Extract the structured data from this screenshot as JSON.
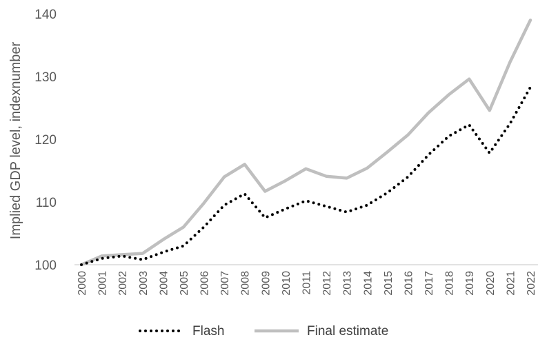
{
  "chart_data": {
    "type": "line",
    "title": "",
    "xlabel": "",
    "ylabel": "Implied GDP level, indexnumber",
    "ylim": [
      100,
      140
    ],
    "yticks": [
      100,
      110,
      120,
      130,
      140
    ],
    "grid": false,
    "legend_position": "bottom",
    "categories": [
      "2000",
      "2001",
      "2002",
      "2003",
      "2004",
      "2005",
      "2006",
      "2007",
      "2008",
      "2009",
      "2010",
      "2011",
      "2012",
      "2013",
      "2014",
      "2015",
      "2016",
      "2017",
      "2018",
      "2019",
      "2020",
      "2021",
      "2022"
    ],
    "series": [
      {
        "name": "Flash",
        "style": "dotted",
        "color": "#000000",
        "values": [
          100.0,
          101.0,
          101.4,
          100.8,
          102.0,
          103.0,
          106.0,
          109.5,
          111.3,
          107.5,
          108.9,
          110.2,
          109.3,
          108.4,
          109.5,
          111.5,
          114.0,
          117.5,
          120.5,
          122.3,
          117.8,
          122.5,
          128.3
        ]
      },
      {
        "name": "Final estimate",
        "style": "solid",
        "color": "#bfbfbf",
        "values": [
          100.0,
          101.4,
          101.6,
          101.8,
          104.0,
          106.0,
          109.8,
          114.0,
          116.0,
          111.7,
          113.4,
          115.3,
          114.1,
          113.8,
          115.4,
          118.0,
          120.7,
          124.2,
          127.1,
          129.6,
          124.6,
          132.3,
          139.0
        ]
      }
    ]
  }
}
